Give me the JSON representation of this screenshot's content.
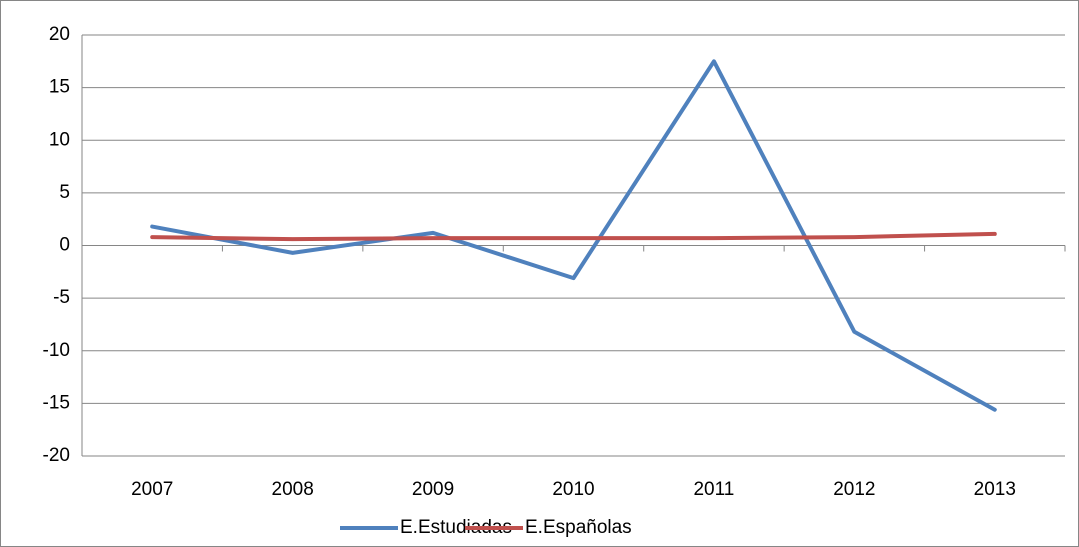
{
  "chart_data": {
    "type": "line",
    "categories": [
      "2007",
      "2008",
      "2009",
      "2010",
      "2011",
      "2012",
      "2013"
    ],
    "series": [
      {
        "name": "E.Estudiadas",
        "color": "#4f81bd",
        "values": [
          1.8,
          -0.7,
          1.2,
          -3.1,
          17.5,
          -8.2,
          -15.6
        ]
      },
      {
        "name": "E.Españolas",
        "color": "#c0504d",
        "values": [
          0.8,
          0.6,
          0.7,
          0.7,
          0.7,
          0.8,
          1.1
        ]
      }
    ],
    "ylim": [
      -20,
      20
    ],
    "yticks": [
      -20,
      -15,
      -10,
      -5,
      0,
      5,
      10,
      15,
      20
    ],
    "grid": true
  }
}
